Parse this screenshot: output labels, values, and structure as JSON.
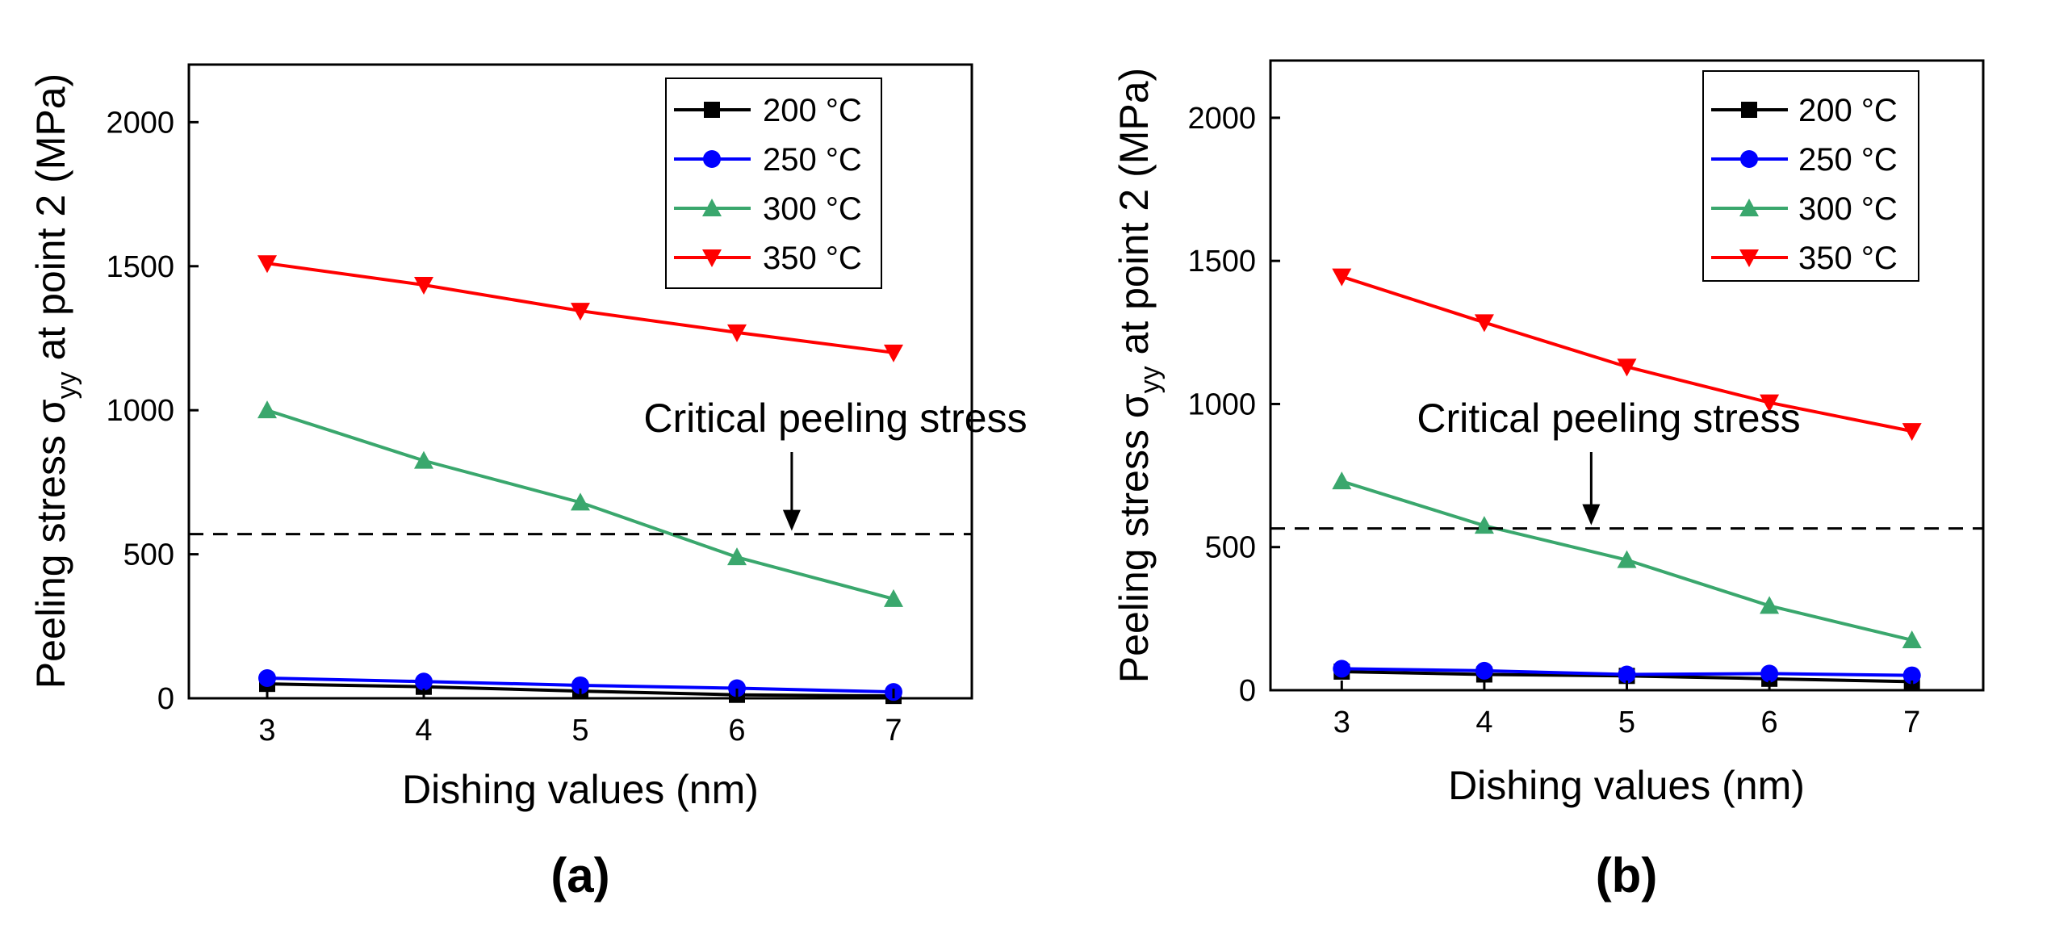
{
  "chart_data": [
    {
      "type": "line",
      "panel_label": "(a)",
      "xlabel": "Dishing values (nm)",
      "ylabel_prefix": "Peeling stress ",
      "ylabel_symbol": "σ",
      "ylabel_subscript": "yy",
      "ylabel_suffix": " at point 2 (MPa)",
      "x": [
        3,
        4,
        5,
        6,
        7
      ],
      "x_ticks": [
        "3",
        "4",
        "5",
        "6",
        "7"
      ],
      "xlim": [
        2.5,
        7.5
      ],
      "ylim": [
        0,
        2200
      ],
      "y_ticks": [
        0,
        500,
        1000,
        1500,
        2000
      ],
      "y_tick_labels": [
        "0",
        "500",
        "1000",
        "1500",
        "2000"
      ],
      "legend_position": "top-right",
      "series": [
        {
          "name": "200 °C",
          "color": "#000000",
          "marker": "square",
          "values": [
            50,
            40,
            25,
            12,
            8
          ]
        },
        {
          "name": "250 °C",
          "color": "#0000ff",
          "marker": "circle",
          "values": [
            70,
            58,
            45,
            35,
            22
          ]
        },
        {
          "name": "300 °C",
          "color": "#3aa76d",
          "marker": "triangle-up",
          "values": [
            1000,
            825,
            680,
            490,
            345
          ]
        },
        {
          "name": "350 °C",
          "color": "#ff0000",
          "marker": "triangle-down",
          "values": [
            1510,
            1435,
            1345,
            1270,
            1200
          ]
        }
      ],
      "critical_line": {
        "value": 570,
        "label": "Critical peeling stress",
        "arrow_x": 6.35
      }
    },
    {
      "type": "line",
      "panel_label": "(b)",
      "xlabel": "Dishing values (nm)",
      "ylabel_prefix": "Peeling stress ",
      "ylabel_symbol": "σ",
      "ylabel_subscript": "yy",
      "ylabel_suffix": " at point 2 (MPa)",
      "x": [
        3,
        4,
        5,
        6,
        7
      ],
      "x_ticks": [
        "3",
        "4",
        "5",
        "6",
        "7"
      ],
      "xlim": [
        2.5,
        7.5
      ],
      "ylim": [
        0,
        2200
      ],
      "y_ticks": [
        0,
        500,
        1000,
        1500,
        2000
      ],
      "y_tick_labels": [
        "0",
        "500",
        "1000",
        "1500",
        "2000"
      ],
      "legend_position": "top-right",
      "series": [
        {
          "name": "200 °C",
          "color": "#000000",
          "marker": "square",
          "values": [
            65,
            55,
            50,
            40,
            30
          ]
        },
        {
          "name": "250 °C",
          "color": "#0000ff",
          "marker": "circle",
          "values": [
            75,
            68,
            55,
            58,
            52
          ]
        },
        {
          "name": "300 °C",
          "color": "#3aa76d",
          "marker": "triangle-up",
          "values": [
            730,
            575,
            455,
            295,
            175
          ]
        },
        {
          "name": "350 °C",
          "color": "#ff0000",
          "marker": "triangle-down",
          "values": [
            1445,
            1285,
            1130,
            1005,
            905
          ]
        }
      ],
      "critical_line": {
        "value": 565,
        "label": "Critical peeling stress",
        "arrow_x": 4.75
      }
    }
  ]
}
